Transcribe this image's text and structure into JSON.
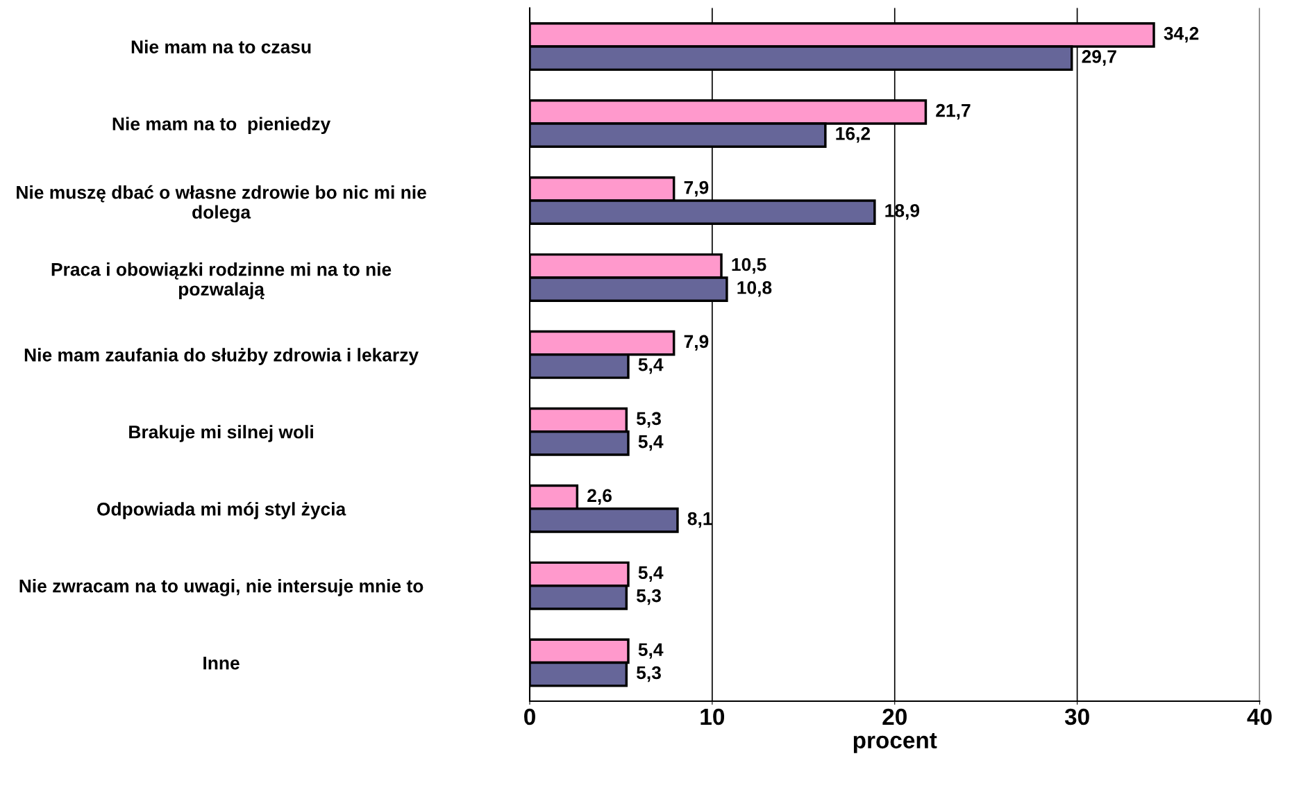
{
  "chart_data": {
    "type": "bar",
    "orientation": "horizontal",
    "xlabel": "procent",
    "categories": [
      "Nie mam na to czasu",
      "Nie mam na to  pieniedzy",
      "Nie muszę dbać o własne zdrowie bo nic mi nie\ndolega",
      "Praca i obowiązki rodzinne mi na to nie\npozwalają",
      "Nie mam zaufania do służby zdrowia i lekarzy",
      "Brakuje mi silnej woli",
      "Odpowiada mi mój styl życia",
      "Nie zwracam na to uwagi, nie intersuje mnie to",
      "Inne"
    ],
    "series": [
      {
        "color": "#ff99cc",
        "values": [
          34.2,
          21.7,
          7.9,
          10.5,
          7.9,
          5.3,
          2.6,
          5.4,
          5.4
        ],
        "value_labels": [
          "34,2",
          "21,7",
          "7,9",
          "10,5",
          "7,9",
          "5,3",
          "2,6",
          "5,4",
          "5,4"
        ]
      },
      {
        "color": "#666699",
        "values": [
          29.7,
          16.2,
          18.9,
          10.8,
          5.4,
          5.4,
          8.1,
          5.3,
          5.3
        ],
        "value_labels": [
          "29,7",
          "16,2",
          "18,9",
          "10,8",
          "5,4",
          "5,4",
          "8,1",
          "5,3",
          "5,3"
        ]
      }
    ],
    "xlim": [
      0,
      40
    ],
    "xticks": [
      0,
      10,
      20,
      30,
      40
    ],
    "grid": "x",
    "legend": false
  }
}
